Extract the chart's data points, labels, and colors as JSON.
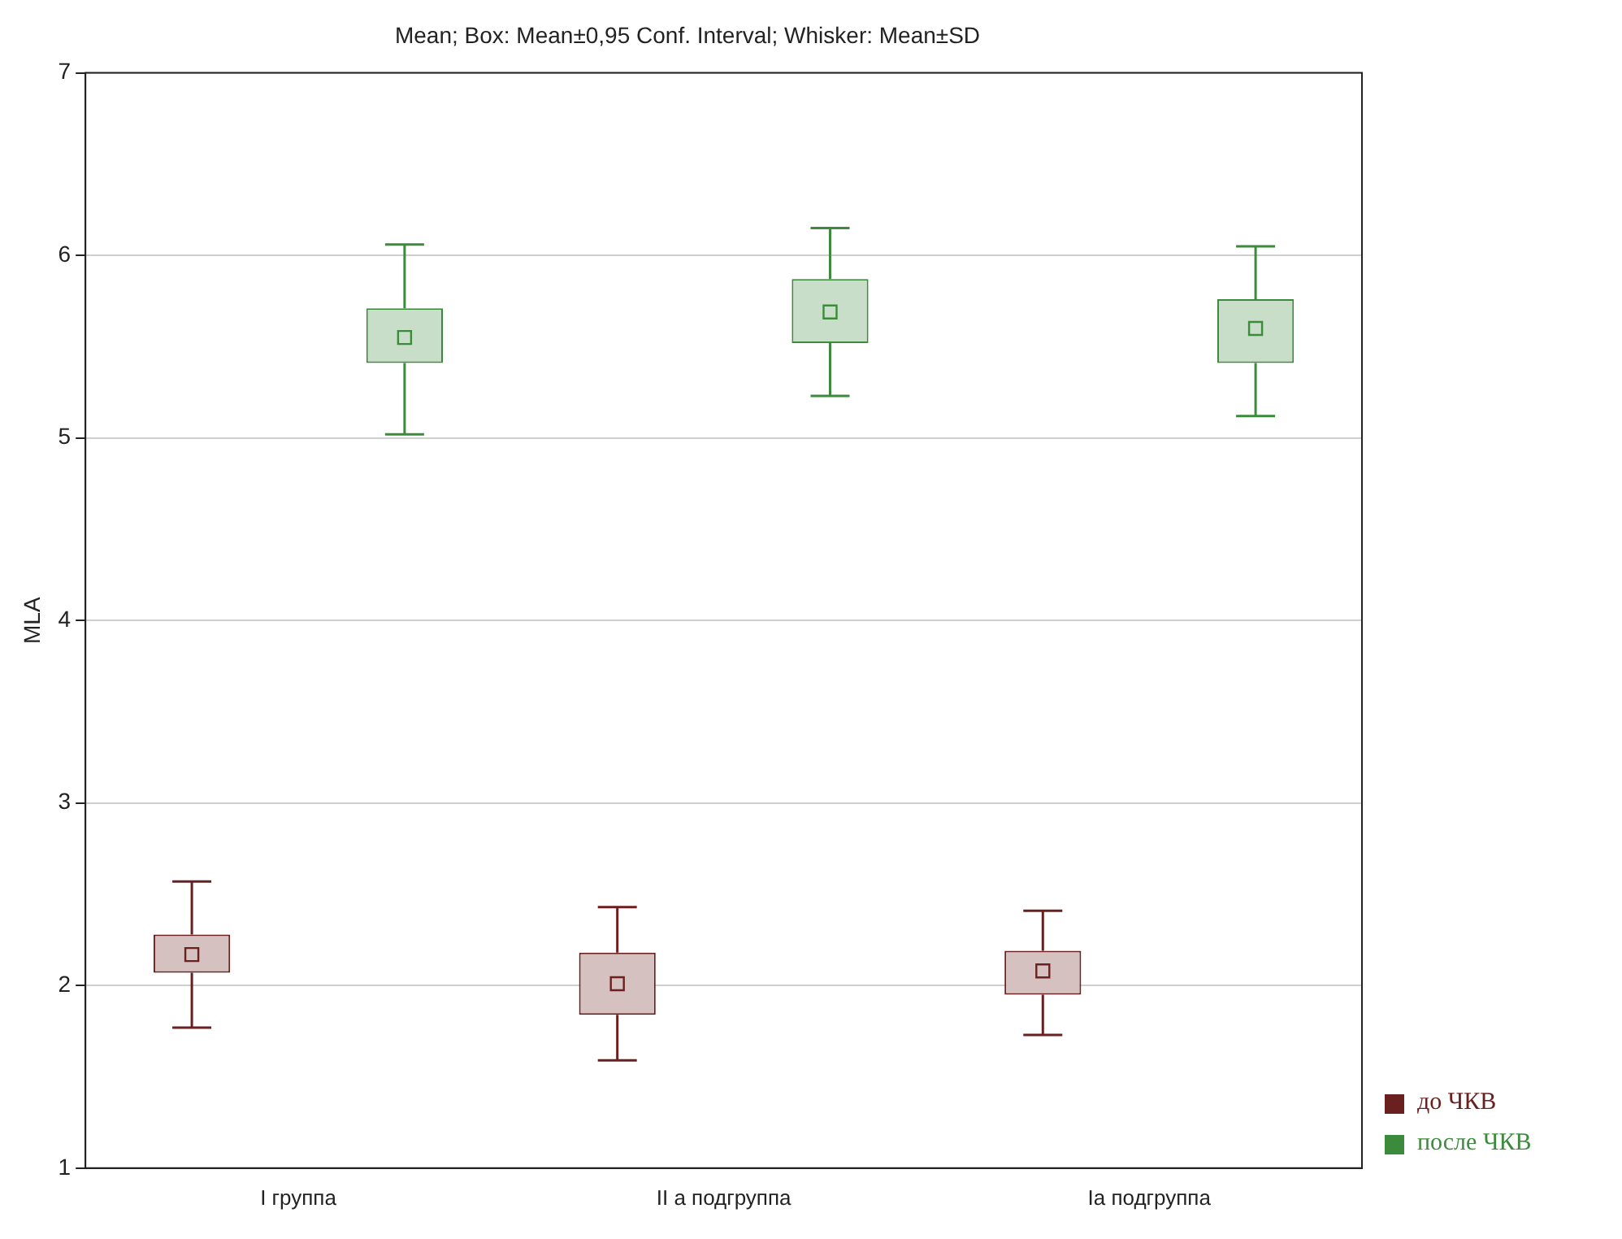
{
  "chart_data": {
    "type": "box",
    "title": "Mean; Box: Mean±0,95 Conf. Interval; Whisker: Mean±SD",
    "ylabel": "MLA",
    "categories": [
      "I группа",
      "II а подгруппа",
      "Ia подгруппа"
    ],
    "series": [
      {
        "name": "до ЧКВ",
        "color": "#6b2020",
        "boxes": [
          {
            "low": 1.77,
            "q1": 2.07,
            "median": 2.17,
            "q3": 2.28,
            "high": 2.57
          },
          {
            "low": 1.59,
            "q1": 1.84,
            "median": 2.01,
            "q3": 2.18,
            "high": 2.43
          },
          {
            "low": 1.73,
            "q1": 1.95,
            "median": 2.08,
            "q3": 2.19,
            "high": 2.41
          }
        ]
      },
      {
        "name": "после ЧКВ",
        "color": "#3c8a3c",
        "boxes": [
          {
            "low": 5.02,
            "q1": 5.41,
            "median": 5.55,
            "q3": 5.71,
            "high": 6.06
          },
          {
            "low": 5.23,
            "q1": 5.52,
            "median": 5.69,
            "q3": 5.87,
            "high": 6.15
          },
          {
            "low": 5.12,
            "q1": 5.41,
            "median": 5.6,
            "q3": 5.76,
            "high": 6.05
          }
        ]
      }
    ],
    "ylim": [
      1,
      7
    ],
    "yticks": [
      1,
      2,
      3,
      4,
      5,
      6,
      7
    ],
    "grid": "y",
    "legend": "bottom right"
  }
}
